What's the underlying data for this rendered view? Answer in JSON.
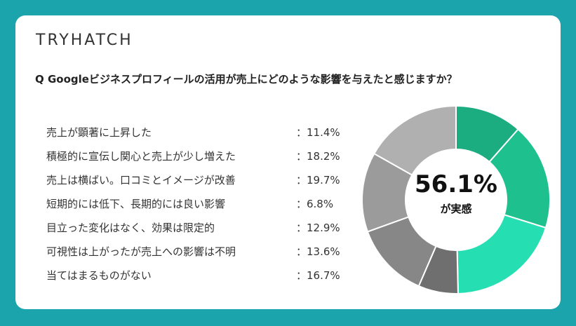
{
  "brand": "TRYHATCH",
  "question": "Q Googleビジネスプロフィールの活用が売上にどのような影響を与えたと感じますか？",
  "summary": {
    "value": "56.1%",
    "label": "が実感"
  },
  "colors": {
    "background": "#1ba4ab",
    "card": "#ffffff",
    "positive": [
      "#1bac80",
      "#1ec08e",
      "#25dfb3"
    ],
    "neutral": [
      "#6f6f6f",
      "#878787",
      "#9b9b9b",
      "#b0b0b0"
    ]
  },
  "chart_data": {
    "type": "pie",
    "title": "",
    "categories": [
      "売上が顕著に上昇した",
      "積極的に宣伝し関心と売上が少し増えた",
      "売上は横ばい。口コミとイメージが改善",
      "短期的には低下、長期的には良い影響",
      "目立った変化はなく、効果は限定的",
      "可視性は上がったが売上への影響は不明",
      "当てはまるものがない"
    ],
    "values": [
      11.4,
      18.2,
      19.7,
      6.8,
      12.9,
      13.6,
      16.7
    ],
    "value_labels": [
      "：11.4%",
      "：18.2%",
      "：19.7%",
      "：6.8%",
      "：12.9%",
      "：13.6%",
      "：16.7%"
    ],
    "slice_colors": [
      "#1bac80",
      "#1ec08e",
      "#25dfb3",
      "#6f6f6f",
      "#878787",
      "#9b9b9b",
      "#b0b0b0"
    ],
    "donut": true,
    "legend": "left"
  }
}
